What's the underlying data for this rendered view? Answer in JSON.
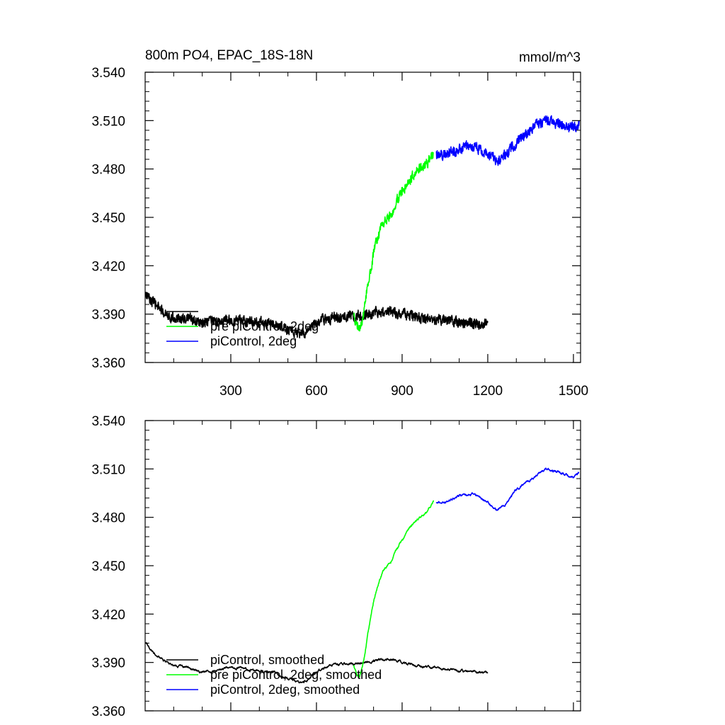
{
  "chart_data": [
    {
      "type": "line",
      "title": "800m PO4, EPAC_18S-18N",
      "units": "mmol/m^3",
      "xlabel": "",
      "ylabel": "",
      "xlim": [
        0,
        1525
      ],
      "ylim": [
        3.36,
        3.54
      ],
      "x_ticks": [
        300,
        600,
        900,
        1200,
        1500
      ],
      "x_tick_labels": [
        "300",
        "600",
        "900",
        "1200",
        "1500"
      ],
      "y_ticks": [
        3.36,
        3.39,
        3.42,
        3.45,
        3.48,
        3.51,
        3.54
      ],
      "y_tick_labels": [
        "3.360",
        "3.390",
        "3.420",
        "3.450",
        "3.480",
        "3.510",
        "3.540"
      ],
      "grid": false,
      "legend_position": "bottom-left",
      "legend": [
        "",
        "pre piControl, 2deg",
        "piControl, 2deg"
      ],
      "series": [
        {
          "label": "",
          "color": "#000000",
          "noise": 0.0035,
          "x": [
            1,
            50,
            100,
            150,
            200,
            250,
            300,
            350,
            400,
            450,
            500,
            550,
            600,
            650,
            700,
            750,
            800,
            850,
            900,
            950,
            1000,
            1050,
            1100,
            1150,
            1200
          ],
          "y": [
            3.402,
            3.393,
            3.388,
            3.387,
            3.384,
            3.385,
            3.387,
            3.386,
            3.385,
            3.384,
            3.38,
            3.377,
            3.384,
            3.388,
            3.389,
            3.389,
            3.391,
            3.392,
            3.39,
            3.388,
            3.387,
            3.386,
            3.385,
            3.384,
            3.384
          ]
        },
        {
          "label": "pre piControl, 2deg",
          "color": "#00ff00",
          "noise": 0.0035,
          "x": [
            730,
            740,
            750,
            760,
            770,
            780,
            790,
            800,
            820,
            840,
            860,
            880,
            900,
            920,
            940,
            960,
            980,
            1000,
            1010
          ],
          "y": [
            3.388,
            3.383,
            3.381,
            3.386,
            3.395,
            3.408,
            3.418,
            3.428,
            3.441,
            3.449,
            3.452,
            3.46,
            3.466,
            3.472,
            3.476,
            3.48,
            3.482,
            3.487,
            3.49
          ]
        },
        {
          "label": "piControl, 2deg",
          "color": "#0000ff",
          "noise": 0.0035,
          "x": [
            1020,
            1050,
            1100,
            1150,
            1200,
            1230,
            1260,
            1300,
            1350,
            1400,
            1450,
            1500,
            1520
          ],
          "y": [
            3.489,
            3.489,
            3.493,
            3.495,
            3.489,
            3.485,
            3.488,
            3.497,
            3.503,
            3.51,
            3.508,
            3.505,
            3.508
          ]
        }
      ]
    },
    {
      "type": "line",
      "title": "",
      "units": "",
      "xlabel": "",
      "ylabel": "",
      "xlim": [
        0,
        1525
      ],
      "ylim": [
        3.36,
        3.54
      ],
      "x_ticks": [
        300,
        600,
        900,
        1200,
        1500
      ],
      "x_tick_labels": [],
      "y_ticks": [
        3.36,
        3.39,
        3.42,
        3.45,
        3.48,
        3.51,
        3.54
      ],
      "y_tick_labels": [
        "3.360",
        "3.390",
        "3.420",
        "3.450",
        "3.480",
        "3.510",
        "3.540"
      ],
      "grid": false,
      "legend_position": "bottom-left",
      "legend": [
        "piControl, smoothed",
        "pre piControl, 2deg, smoothed",
        "piControl, 2deg, smoothed"
      ],
      "series": [
        {
          "label": "piControl, smoothed",
          "color": "#000000",
          "noise": 0.0012,
          "x": [
            1,
            50,
            100,
            150,
            200,
            250,
            300,
            350,
            400,
            450,
            500,
            550,
            600,
            650,
            700,
            750,
            800,
            850,
            900,
            950,
            1000,
            1050,
            1100,
            1150,
            1200
          ],
          "y": [
            3.402,
            3.393,
            3.388,
            3.387,
            3.384,
            3.385,
            3.387,
            3.386,
            3.385,
            3.384,
            3.38,
            3.377,
            3.384,
            3.388,
            3.389,
            3.389,
            3.391,
            3.392,
            3.39,
            3.388,
            3.387,
            3.386,
            3.385,
            3.384,
            3.384
          ]
        },
        {
          "label": "pre piControl, 2deg, smoothed",
          "color": "#00ff00",
          "noise": 0.0012,
          "x": [
            730,
            740,
            750,
            760,
            770,
            780,
            790,
            800,
            820,
            840,
            860,
            880,
            900,
            920,
            940,
            960,
            980,
            1000,
            1010
          ],
          "y": [
            3.388,
            3.383,
            3.381,
            3.386,
            3.395,
            3.408,
            3.418,
            3.428,
            3.441,
            3.449,
            3.452,
            3.46,
            3.466,
            3.472,
            3.476,
            3.48,
            3.482,
            3.487,
            3.49
          ]
        },
        {
          "label": "piControl, 2deg, smoothed",
          "color": "#0000ff",
          "noise": 0.0012,
          "x": [
            1020,
            1050,
            1100,
            1150,
            1200,
            1230,
            1260,
            1300,
            1350,
            1400,
            1450,
            1500,
            1520
          ],
          "y": [
            3.489,
            3.489,
            3.493,
            3.495,
            3.489,
            3.485,
            3.488,
            3.497,
            3.503,
            3.51,
            3.508,
            3.505,
            3.508
          ]
        }
      ]
    }
  ]
}
